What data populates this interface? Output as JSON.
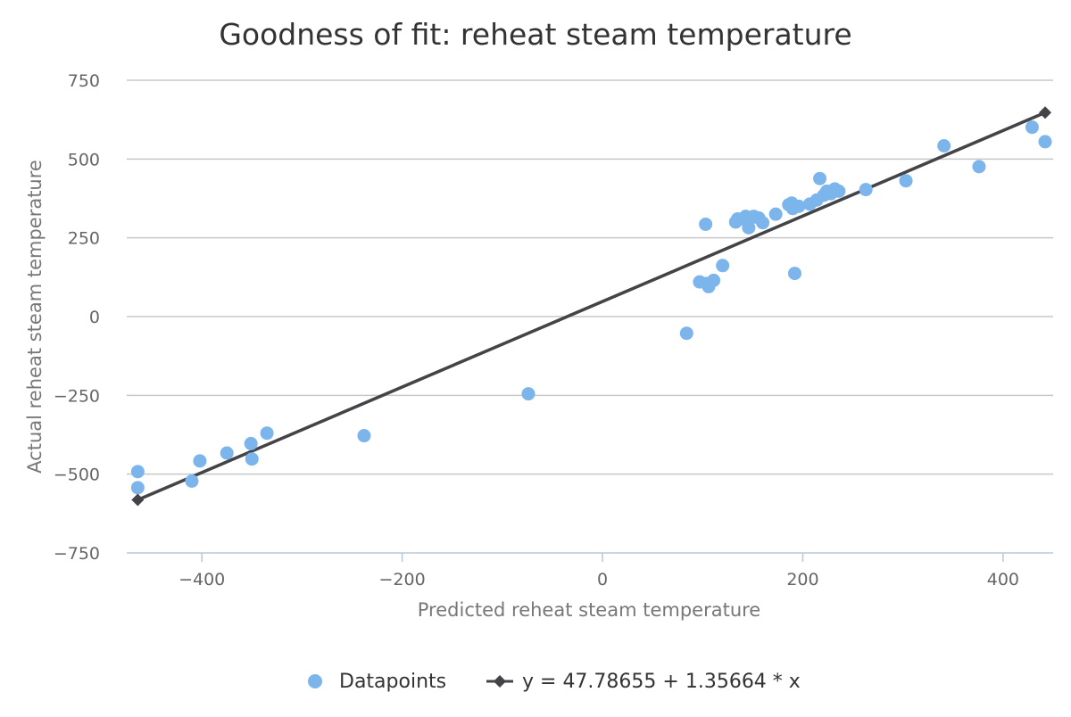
{
  "chart_data": {
    "type": "scatter",
    "title": "Goodness of fit: reheat steam temperature",
    "xlabel": "Predicted reheat steam temperature",
    "ylabel": "Actual reheat steam temperature",
    "xlim": [
      -475,
      450
    ],
    "ylim": [
      -750,
      750
    ],
    "x_ticks": [
      -400,
      -200,
      0,
      200,
      400
    ],
    "x_tick_labels": [
      "−400",
      "−200",
      "0",
      "200",
      "400"
    ],
    "y_ticks": [
      -750,
      -500,
      -250,
      0,
      250,
      500,
      750
    ],
    "y_tick_labels": [
      "−750",
      "−500",
      "−250",
      "0",
      "250",
      "500",
      "750"
    ],
    "grid": true,
    "legend_position": "bottom",
    "series": [
      {
        "name": "Datapoints",
        "kind": "scatter",
        "color": "#7cb5ec",
        "points": [
          [
            -464,
            -492
          ],
          [
            -464,
            -543
          ],
          [
            -410,
            -522
          ],
          [
            -402,
            -458
          ],
          [
            -375,
            -433
          ],
          [
            -351,
            -403
          ],
          [
            -350,
            -452
          ],
          [
            -335,
            -370
          ],
          [
            -238,
            -378
          ],
          [
            -74,
            -245
          ],
          [
            84,
            -53
          ],
          [
            97,
            110
          ],
          [
            103,
            293
          ],
          [
            104,
            105
          ],
          [
            106,
            95
          ],
          [
            111,
            115
          ],
          [
            120,
            162
          ],
          [
            133,
            300
          ],
          [
            135,
            310
          ],
          [
            143,
            318
          ],
          [
            145,
            300
          ],
          [
            146,
            282
          ],
          [
            151,
            318
          ],
          [
            156,
            313
          ],
          [
            160,
            298
          ],
          [
            173,
            325
          ],
          [
            186,
            355
          ],
          [
            189,
            360
          ],
          [
            190,
            343
          ],
          [
            192,
            137
          ],
          [
            196,
            350
          ],
          [
            207,
            357
          ],
          [
            214,
            370
          ],
          [
            217,
            438
          ],
          [
            221,
            385
          ],
          [
            224,
            398
          ],
          [
            228,
            390
          ],
          [
            232,
            405
          ],
          [
            236,
            398
          ],
          [
            263,
            403
          ],
          [
            303,
            431
          ],
          [
            341,
            542
          ],
          [
            376,
            476
          ],
          [
            429,
            601
          ],
          [
            442,
            555
          ]
        ]
      },
      {
        "name": "y = 47.78655 + 1.35664 * x",
        "kind": "line",
        "color": "#434348",
        "intercept": 47.78655,
        "slope": 1.35664,
        "x_range": [
          -464,
          442
        ]
      }
    ]
  }
}
